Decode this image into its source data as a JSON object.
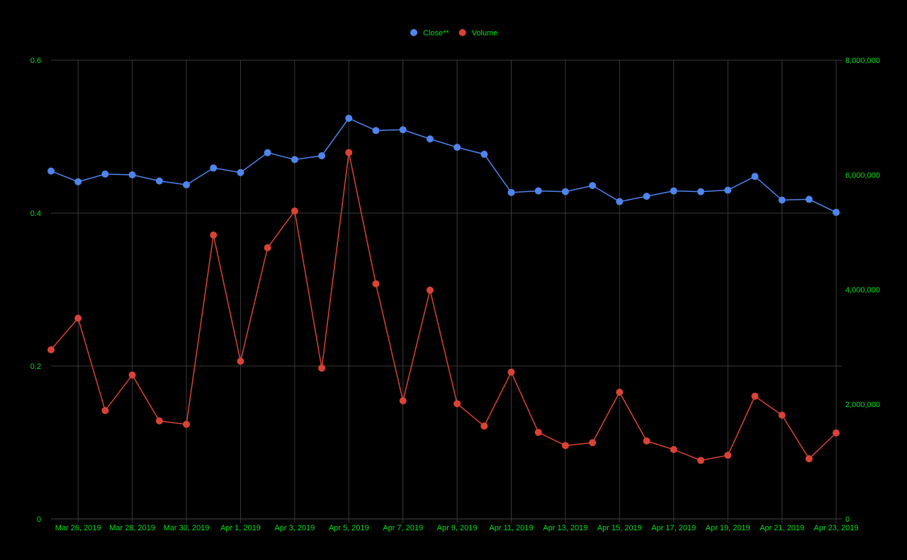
{
  "chart_data": {
    "type": "line",
    "title": "",
    "xlabel": "",
    "ylabel": "",
    "y2label": "",
    "x_dates": [
      "Mar 25, 2019",
      "Mar 26, 2019",
      "Mar 27, 2019",
      "Mar 28, 2019",
      "Mar 29, 2019",
      "Mar 30, 2019",
      "Mar 31, 2019",
      "Apr 1, 2019",
      "Apr 2, 2019",
      "Apr 3, 2019",
      "Apr 4, 2019",
      "Apr 5, 2019",
      "Apr 6, 2019",
      "Apr 7, 2019",
      "Apr 8, 2019",
      "Apr 9, 2019",
      "Apr 10, 2019",
      "Apr 11, 2019",
      "Apr 12, 2019",
      "Apr 13, 2019",
      "Apr 14, 2019",
      "Apr 15, 2019",
      "Apr 16, 2019",
      "Apr 17, 2019",
      "Apr 18, 2019",
      "Apr 19, 2019",
      "Apr 20, 2019",
      "Apr 21, 2019",
      "Apr 22, 2019",
      "Apr 23, 2019"
    ],
    "x_tick_labels": [
      "Mar 26, 2019",
      "Mar 28, 2019",
      "Mar 30, 2019",
      "Apr 1, 2019",
      "Apr 3, 2019",
      "Apr 5, 2019",
      "Apr 7, 2019",
      "Apr 9, 2019",
      "Apr 11, 2019",
      "Apr 13, 2019",
      "Apr 15, 2019",
      "Apr 17, 2019",
      "Apr 19, 2019",
      "Apr 21, 2019",
      "Apr 23, 2019"
    ],
    "y_left": {
      "range": [
        0,
        0.6
      ],
      "ticks": [
        0,
        0.2,
        0.4,
        0.6
      ],
      "tick_labels": [
        "0",
        "0.2",
        "0.4",
        "0.6"
      ]
    },
    "y_right": {
      "range": [
        0,
        8000000
      ],
      "ticks": [
        0,
        2000000,
        4000000,
        6000000,
        8000000
      ],
      "tick_labels": [
        "0",
        "2,000,000",
        "4,000,000",
        "6,000,000",
        "8,000,000"
      ]
    },
    "series": [
      {
        "name": "Close**",
        "axis": "left",
        "color": "#4f85ec",
        "values": [
          0.455,
          0.441,
          0.451,
          0.45,
          0.442,
          0.437,
          0.459,
          0.453,
          0.479,
          0.47,
          0.475,
          0.524,
          0.508,
          0.509,
          0.497,
          0.486,
          0.477,
          0.427,
          0.429,
          0.428,
          0.436,
          0.415,
          0.422,
          0.429,
          0.428,
          0.43,
          0.448,
          0.417,
          0.418,
          0.401
        ]
      },
      {
        "name": "Volume",
        "axis": "right",
        "color": "#d94335",
        "values": [
          2950000,
          3500000,
          1890000,
          2510000,
          1710000,
          1650000,
          4950000,
          2750000,
          4730000,
          5370000,
          2630000,
          6390000,
          4100000,
          2060000,
          3990000,
          2010000,
          1620000,
          2560000,
          1510000,
          1280000,
          1330000,
          2210000,
          1360000,
          1210000,
          1020000,
          1110000,
          2140000,
          1810000,
          1050000,
          1500000
        ]
      }
    ],
    "grid": true,
    "legend_position": "top-center"
  },
  "style": {
    "background": "#000000",
    "grid_color": "#3a3a3a",
    "axis_text_color": "#00e01a",
    "legend_text_color": "#00e01a"
  }
}
